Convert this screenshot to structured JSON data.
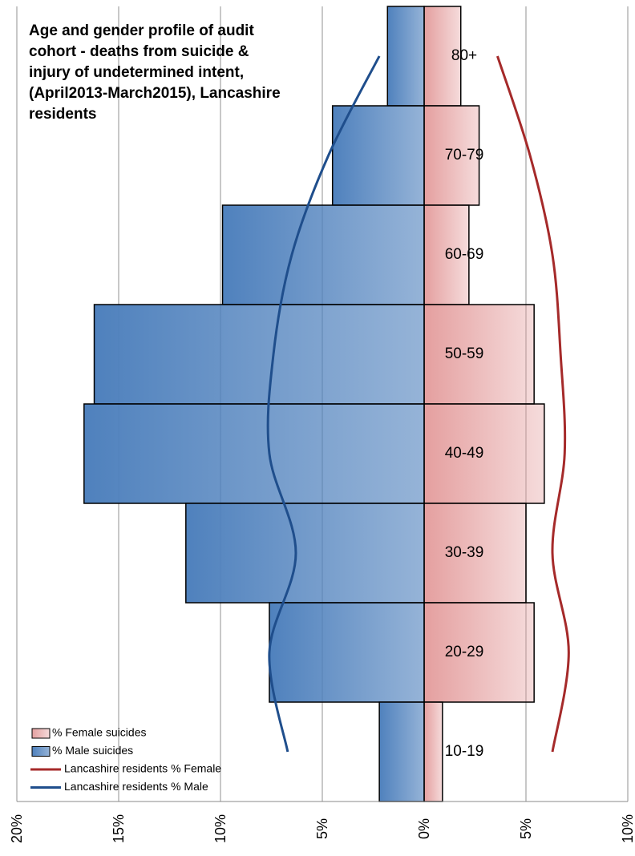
{
  "chart_data": {
    "type": "pyramid",
    "title": "Age and gender profile of audit cohort - deaths from suicide & injury of undetermined intent, (April2013-March2015), Lancashire residents",
    "categories": [
      "80+",
      "70-79",
      "60-69",
      "50-59",
      "40-49",
      "30-39",
      "20-29",
      "10-19"
    ],
    "series": [
      {
        "name": "% Female suicides",
        "kind": "bar",
        "color": "#e39a9a",
        "values": [
          1.8,
          2.7,
          2.2,
          5.4,
          5.9,
          5.0,
          5.4,
          0.9
        ]
      },
      {
        "name": "% Male suicides",
        "kind": "bar",
        "color": "#4f81bd",
        "values": [
          -1.8,
          -4.5,
          -9.9,
          -16.2,
          -16.7,
          -11.7,
          -7.6,
          -2.2
        ]
      },
      {
        "name": "Lancashire residents % Female",
        "kind": "line",
        "color": "#a52a2a",
        "values": [
          3.6,
          5.2,
          6.3,
          6.7,
          6.9,
          6.3,
          7.1,
          6.3
        ]
      },
      {
        "name": "Lancashire residents % Male",
        "kind": "line",
        "color": "#1f4e8c",
        "values": [
          -2.2,
          -4.7,
          -6.5,
          -7.4,
          -7.6,
          -6.3,
          -7.6,
          -6.7
        ]
      }
    ],
    "xlim": [
      -20,
      10
    ],
    "xticks": [
      {
        "value": -20,
        "label": "20%"
      },
      {
        "value": -15,
        "label": "15%"
      },
      {
        "value": -10,
        "label": "10%"
      },
      {
        "value": -5,
        "label": "5%"
      },
      {
        "value": 0,
        "label": "0%"
      },
      {
        "value": 5,
        "label": "5%"
      },
      {
        "value": 10,
        "label": "10%"
      }
    ],
    "grid": true,
    "legend": "bottom-left"
  }
}
